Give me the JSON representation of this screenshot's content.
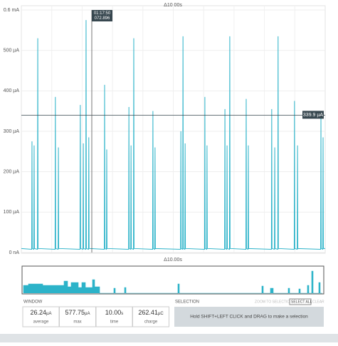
{
  "chart_data": {
    "type": "line",
    "header_duration": "Δ10.00s",
    "minimap_duration": "Δ10.00s",
    "xlim": [
      0,
      10
    ],
    "ylim": [
      0,
      600
    ],
    "yticks": [
      {
        "value": 0,
        "label": "0 nA"
      },
      {
        "value": 100,
        "label": "100 µA"
      },
      {
        "value": 200,
        "label": "200 µA"
      },
      {
        "value": 300,
        "label": "300 µA"
      },
      {
        "value": 400,
        "label": "400 µA"
      },
      {
        "value": 500,
        "label": "500 µA"
      },
      {
        "value": 600,
        "label": "0.6 mA"
      }
    ],
    "grid": true,
    "x": [
      0,
      0.34,
      0.35,
      0.36,
      0.41,
      0.42,
      0.43,
      0.53,
      0.54,
      0.55,
      1.11,
      1.12,
      1.13,
      1.21,
      1.22,
      1.23,
      1.93,
      1.94,
      1.95,
      2.03,
      2.04,
      2.05,
      2.12,
      2.13,
      2.14,
      2.21,
      2.22,
      2.23,
      2.73,
      2.74,
      2.75,
      2.8,
      2.81,
      2.82,
      3.53,
      3.54,
      3.55,
      3.6,
      3.61,
      3.62,
      3.69,
      3.7,
      3.71,
      4.32,
      4.33,
      4.34,
      4.39,
      4.4,
      4.41,
      5.24,
      5.25,
      5.26,
      5.31,
      5.32,
      5.33,
      5.38,
      5.39,
      5.4,
      6.03,
      6.04,
      6.05,
      6.1,
      6.11,
      6.12,
      6.69,
      6.7,
      6.71,
      6.76,
      6.77,
      6.78,
      6.85,
      6.86,
      6.87,
      7.39,
      7.4,
      7.41,
      7.46,
      7.47,
      7.48,
      8.23,
      8.24,
      8.25,
      8.33,
      8.34,
      8.35,
      8.44,
      8.45,
      8.46,
      8.98,
      8.99,
      9.0,
      9.08,
      9.09,
      9.1,
      9.85,
      9.86,
      9.87,
      9.92,
      9.93,
      9.94,
      10
    ],
    "series": [
      {
        "name": "current",
        "color": "#2cb3c9",
        "values": [
          10,
          8,
          275,
          10,
          8,
          265,
          10,
          8,
          530,
          10,
          8,
          385,
          10,
          8,
          260,
          10,
          8,
          365,
          10,
          8,
          270,
          10,
          8,
          575,
          10,
          8,
          285,
          10,
          8,
          415,
          10,
          8,
          255,
          10,
          8,
          360,
          10,
          8,
          265,
          10,
          8,
          530,
          10,
          8,
          350,
          10,
          8,
          260,
          10,
          8,
          300,
          10,
          8,
          535,
          10,
          8,
          270,
          10,
          8,
          385,
          10,
          8,
          265,
          10,
          8,
          355,
          10,
          8,
          265,
          10,
          8,
          535,
          10,
          8,
          380,
          10,
          8,
          265,
          10,
          8,
          355,
          10,
          8,
          260,
          10,
          8,
          535,
          10,
          8,
          375,
          10,
          8,
          265,
          10,
          8,
          335,
          10,
          8,
          285,
          10,
          10
        ]
      }
    ],
    "cursor": {
      "time": "01:17:50",
      "fraction": "072.896"
    },
    "hline": {
      "value": 339.9,
      "label": "339.9 µA"
    }
  },
  "window": {
    "title": "WINDOW",
    "stats": [
      {
        "value": "26.24",
        "unit": "µA",
        "label": "average"
      },
      {
        "value": "577.75",
        "unit": "µA",
        "label": "max"
      },
      {
        "value": "10.00",
        "unit": "s",
        "label": "time"
      },
      {
        "value": "262.41",
        "unit": "µC",
        "label": "charge"
      }
    ]
  },
  "selection": {
    "title": "SELECTION",
    "zoom": "ZOOM TO SELECTION",
    "select_all": "SELECT ALL",
    "clear": "CLEAR",
    "hint": "Hold SHIFT+LEFT CLICK and DRAG to make a selection"
  }
}
